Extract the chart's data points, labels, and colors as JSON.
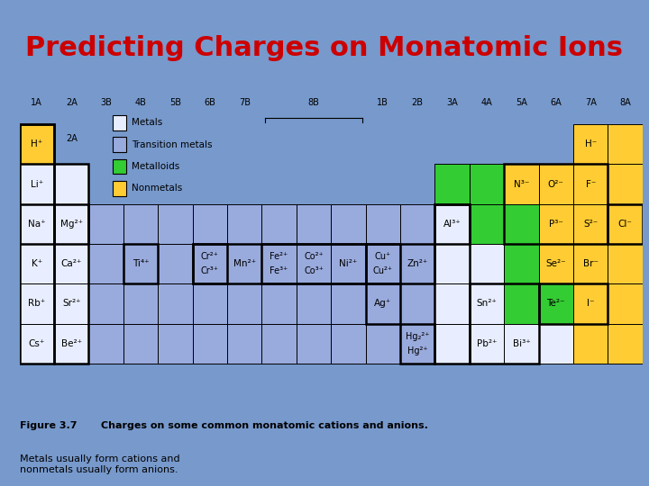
{
  "title": "Predicting Charges on Monatomic Ions",
  "title_color": "#cc0000",
  "title_fontsize": 22,
  "bg_color": "#7799cc",
  "colors": {
    "metal": "#e8eeff",
    "transition_metal": "#99aadd",
    "metalloid": "#33cc33",
    "nonmetal": "#ffcc33",
    "empty": "#ffffff"
  },
  "legend": [
    {
      "label": "Metals",
      "color": "#e8eeff"
    },
    {
      "label": "Transition metals",
      "color": "#99aadd"
    },
    {
      "label": "Metalloids",
      "color": "#33cc33"
    },
    {
      "label": "Nonmetals",
      "color": "#ffcc33"
    }
  ]
}
